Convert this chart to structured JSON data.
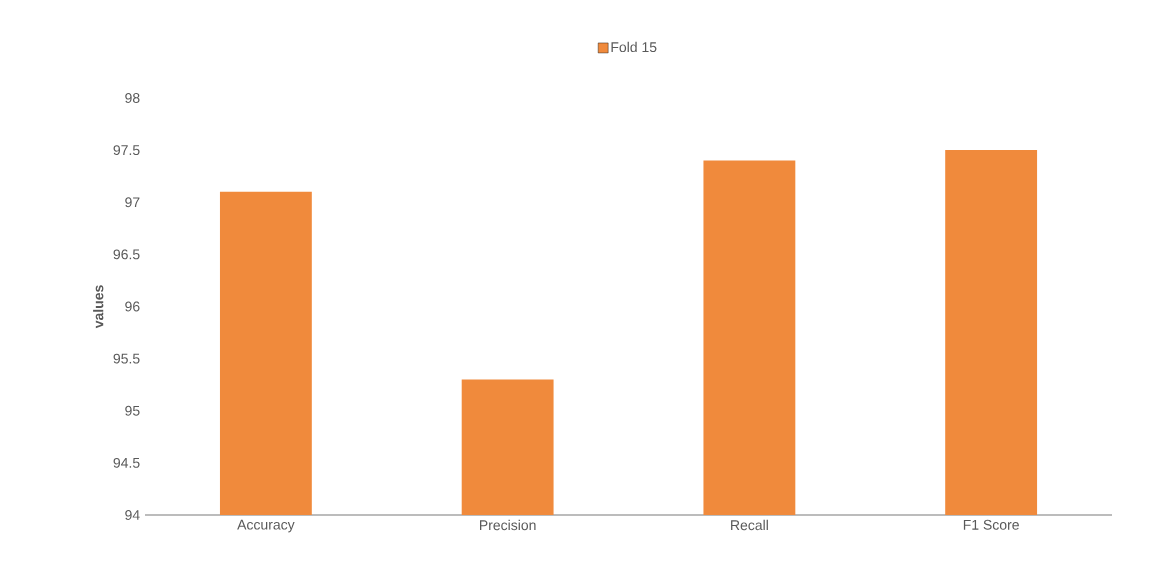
{
  "chart_data": {
    "type": "bar",
    "ylabel": "values",
    "categories": [
      "Accuracy",
      "Precision",
      "Recall",
      "F1 Score"
    ],
    "series": [
      {
        "name": "Fold 15",
        "color": "#f08a3c",
        "values": [
          97.1,
          95.3,
          97.4,
          97.5
        ]
      }
    ],
    "ylim": [
      94,
      98
    ],
    "yticks": [
      94,
      94.5,
      95,
      95.5,
      96,
      96.5,
      97,
      97.5,
      98
    ],
    "legend": "top"
  }
}
